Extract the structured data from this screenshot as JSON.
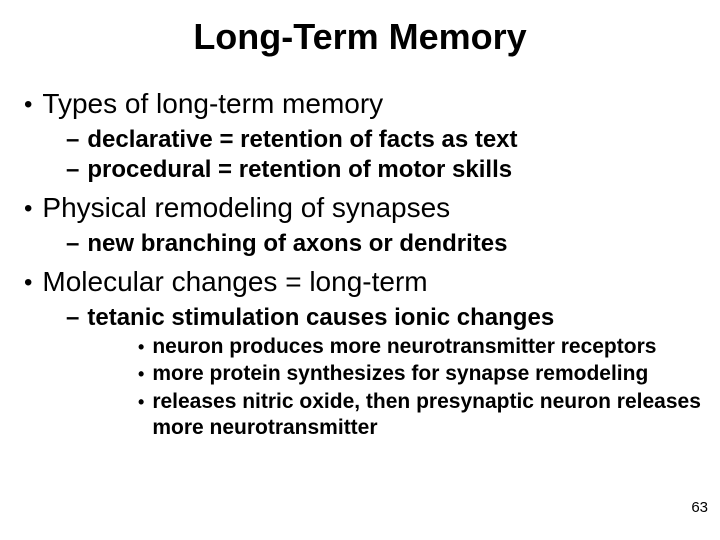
{
  "title": "Long-Term Memory",
  "bullets": {
    "b1": "Types of long-term memory",
    "b1a": "declarative = retention of facts as text",
    "b1b": "procedural = retention of motor skills",
    "b2": "Physical remodeling of synapses",
    "b2a": "new branching of axons or dendrites",
    "b3": "Molecular changes = long-term",
    "b3a": "tetanic stimulation causes ionic changes",
    "b3a1": " neuron produces more neurotransmitter receptors",
    "b3a2": "more protein synthesizes for synapse remodeling",
    "b3a3": "releases nitric oxide, then presynaptic neuron releases more neurotransmitter"
  },
  "page_number": "63",
  "colors": {
    "background": "#ffffff",
    "text": "#000000"
  },
  "typography": {
    "title_fontsize": 36,
    "level1_fontsize": 28,
    "level2_fontsize": 24,
    "level3_fontsize": 21,
    "font_family": "Arial",
    "weight_title": "bold",
    "weight_level2": "bold",
    "weight_level3": "bold"
  }
}
